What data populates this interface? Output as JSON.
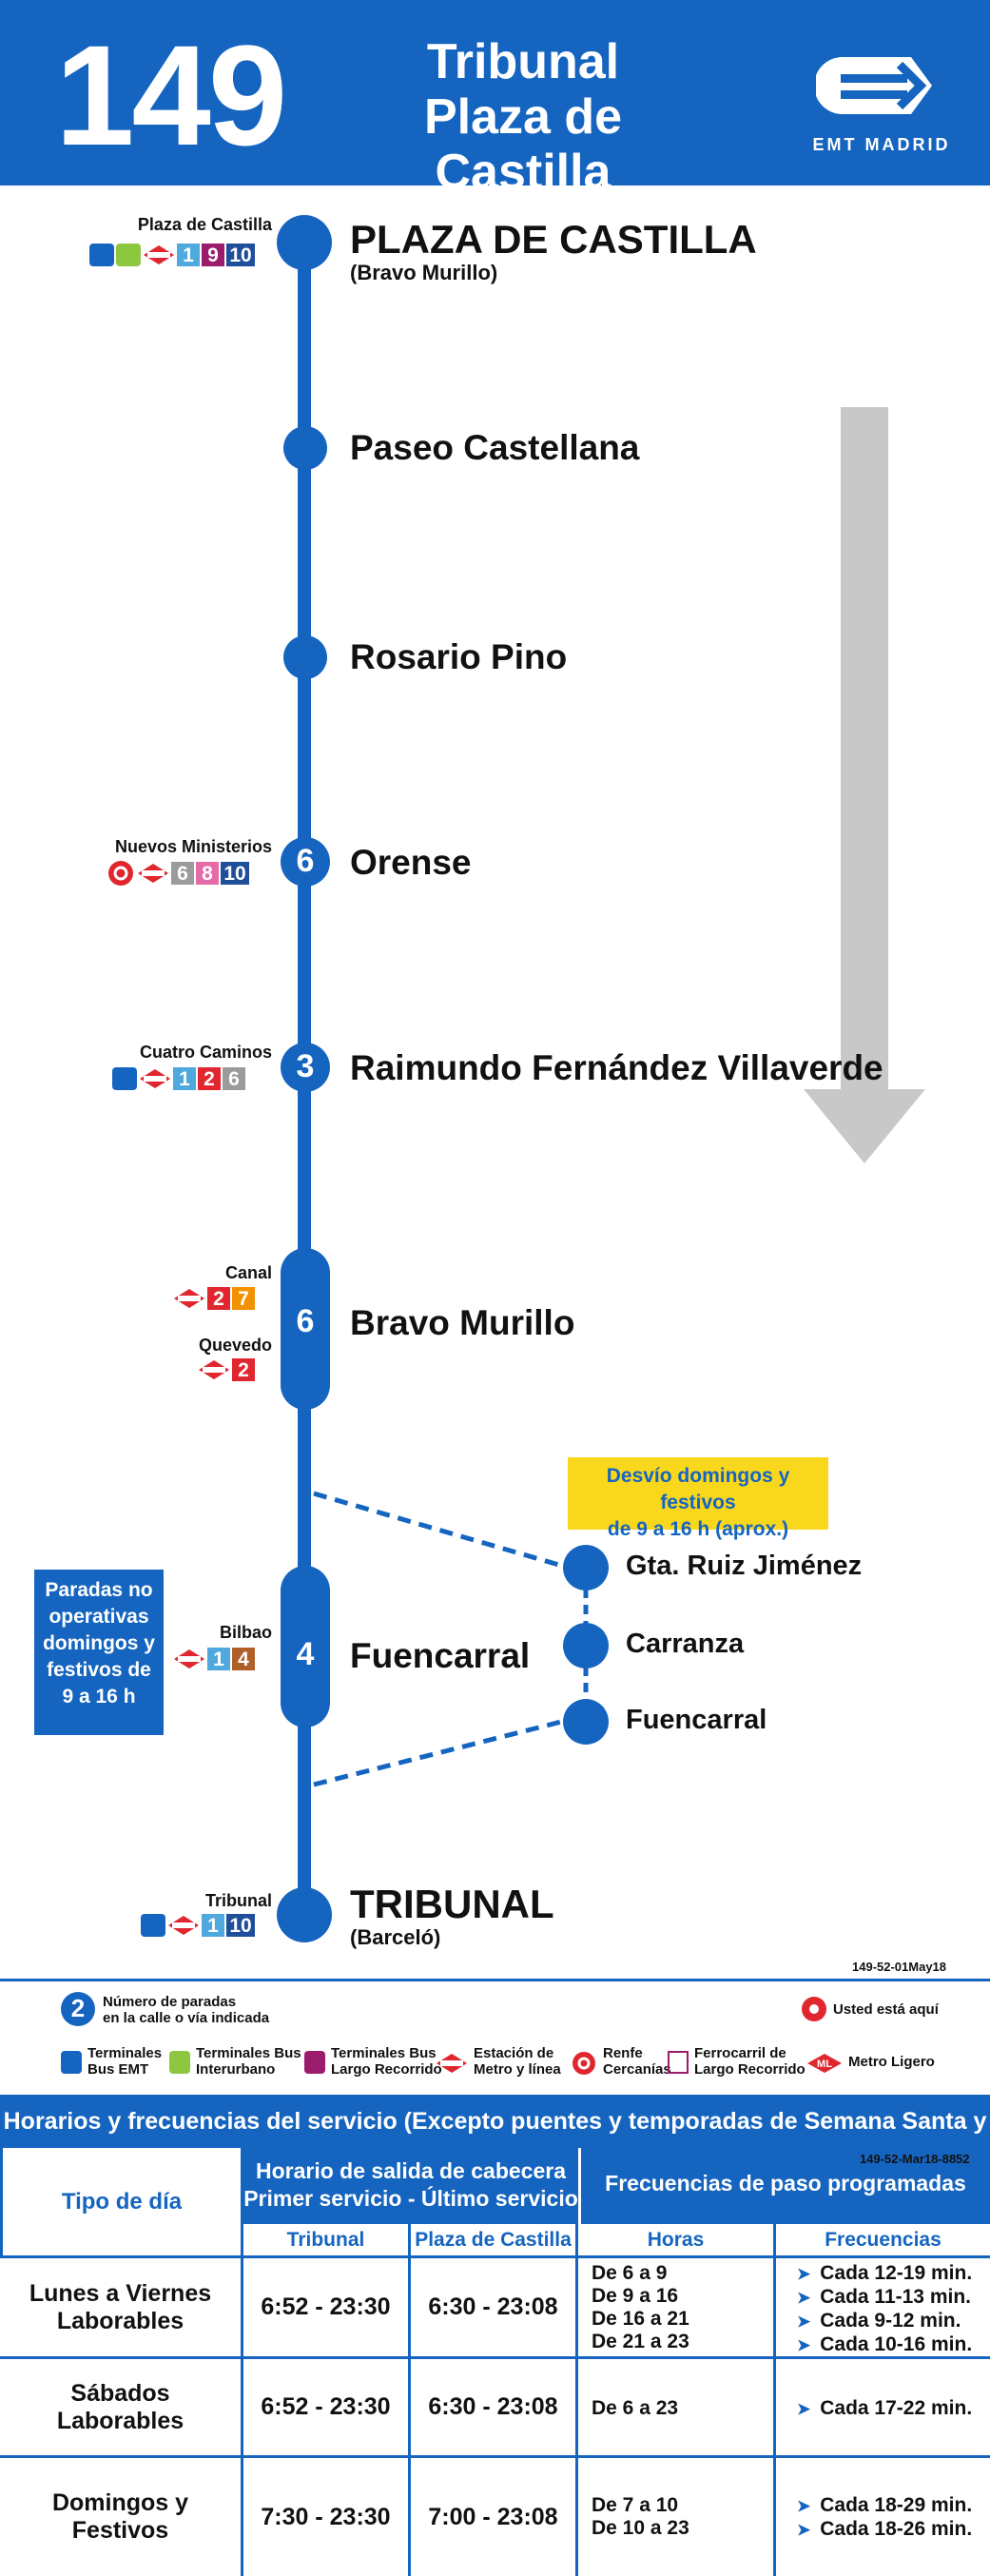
{
  "header": {
    "route_number": "149",
    "destination_line1": "Tribunal",
    "destination_line2": "Plaza de Castilla",
    "operator": "EMT MADRID"
  },
  "colors": {
    "brand_blue": "#1565c0",
    "arrow_gray": "#c8c8c8",
    "detour_yellow": "#f9d71c",
    "metro_line_1": "#4fa8de",
    "metro_line_2": "#e0262e",
    "metro_line_3": "#f2c40c",
    "metro_line_4": "#b15f29",
    "metro_line_6": "#9b9b9b",
    "metro_line_7": "#f39200",
    "metro_line_8": "#e56ba8",
    "metro_line_9": "#9b1c6c",
    "metro_line_10": "#1f4e9b",
    "metro_red": "#e0262e"
  },
  "stops": [
    {
      "name": "PLAZA DE CASTILLA",
      "sub": "(Bravo Murillo)",
      "connection_label": "Plaza de Castilla",
      "metro_lines": [
        "1",
        "9",
        "10"
      ],
      "icons": [
        "bus-emt-icon",
        "bus-interurbano-icon",
        "metro-icon"
      ]
    },
    {
      "name": "Paseo Castellana"
    },
    {
      "name": "Rosario Pino"
    },
    {
      "name": "Orense",
      "count": "6",
      "connection_label": "Nuevos Ministerios",
      "metro_lines": [
        "6",
        "8",
        "10"
      ],
      "icons": [
        "renfe-icon",
        "metro-icon"
      ]
    },
    {
      "name": "Raimundo Fernández Villaverde",
      "count": "3",
      "connection_label": "Cuatro Caminos",
      "metro_lines": [
        "1",
        "2",
        "6"
      ],
      "icons": [
        "bus-emt-icon",
        "metro-icon"
      ]
    },
    {
      "name": "Bravo Murillo",
      "count": "6",
      "connection_label": "Canal",
      "metro_lines": [
        "2",
        "7"
      ],
      "connection_label_2": "Quevedo",
      "metro_lines_2": [
        "2"
      ]
    },
    {
      "name": "Fuencarral",
      "count": "4",
      "connection_label": "Bilbao",
      "metro_lines": [
        "1",
        "4"
      ]
    },
    {
      "name": "TRIBUNAL",
      "sub": "(Barceló)",
      "connection_label": "Tribunal",
      "metro_lines": [
        "1",
        "10"
      ],
      "icons": [
        "bus-emt-icon",
        "metro-icon"
      ]
    }
  ],
  "detour": {
    "label": "Desvío domingos y festivos de 9 a 16 h (aprox.)",
    "label_line1": "Desvío domingos y festivos",
    "label_line2": "de 9 a 16 h (aprox.)",
    "stops": [
      "Gta. Ruiz Jiménez",
      "Carranza",
      "Fuencarral"
    ]
  },
  "notice": {
    "line1": "Paradas no",
    "line2": "operativas",
    "line3": "domingos y",
    "line4": "festivos de",
    "line5": "9 a 16 h"
  },
  "codes": {
    "map_code": "149-52-01May18",
    "table_code": "149-52-Mar18-8852"
  },
  "legend": {
    "stop_count_example": "2",
    "stop_count_text_1": "Número de paradas",
    "stop_count_text_2": "en la calle o vía indicada",
    "you_are_here": "Usted está aquí",
    "items": [
      {
        "icon": "bus-emt-icon",
        "l1": "Terminales",
        "l2": "Bus EMT"
      },
      {
        "icon": "bus-interurbano-icon",
        "l1": "Terminales Bus",
        "l2": "Interurbano"
      },
      {
        "icon": "bus-largo-icon",
        "l1": "Terminales Bus",
        "l2": "Largo Recorrido"
      },
      {
        "icon": "metro-icon",
        "l1": "Estación de",
        "l2": "Metro y línea"
      },
      {
        "icon": "renfe-icon",
        "l1": "Renfe",
        "l2": "Cercanías"
      },
      {
        "icon": "ferrocarril-icon",
        "l1": "Ferrocarril de",
        "l2": "Largo Recorrido"
      },
      {
        "icon": "metro-ligero-icon",
        "l1": "Metro Ligero",
        "l2": ""
      }
    ]
  },
  "schedule": {
    "title": "Horarios y frecuencias del servicio (Excepto puentes y temporadas de Semana Santa y Verano)",
    "col_day": "Tipo de día",
    "col_hours_1": "Horario de salida de cabecera",
    "col_hours_2": "Primer servicio - Último servicio",
    "col_freq": "Frecuencias de paso programadas",
    "sub_tribunal": "Tribunal",
    "sub_plaza": "Plaza de Castilla",
    "sub_horas": "Horas",
    "sub_frecuencias": "Frecuencias",
    "rows": [
      {
        "day_1": "Lunes a Viernes",
        "day_2": "Laborables",
        "tribunal": "6:52 - 23:30",
        "plaza": "6:30 - 23:08",
        "hours": [
          "De 6 a 9",
          "De 9 a 16",
          "De 16 a 21",
          "De 21 a 23"
        ],
        "freqs": [
          "Cada 12-19 min.",
          "Cada 11-13 min.",
          "Cada 9-12 min.",
          "Cada 10-16 min."
        ]
      },
      {
        "day_1": "Sábados",
        "day_2": "Laborables",
        "tribunal": "6:52 - 23:30",
        "plaza": "6:30 - 23:08",
        "hours": [
          "De 6 a 23"
        ],
        "freqs": [
          "Cada 17-22 min."
        ]
      },
      {
        "day_1": "Domingos y",
        "day_2": "Festivos",
        "tribunal": "7:30 - 23:30",
        "plaza": "7:00 - 23:08",
        "hours": [
          "De 7 a 10",
          "De 10 a 23"
        ],
        "freqs": [
          "Cada 18-29 min.",
          "Cada 18-26 min."
        ]
      }
    ]
  }
}
